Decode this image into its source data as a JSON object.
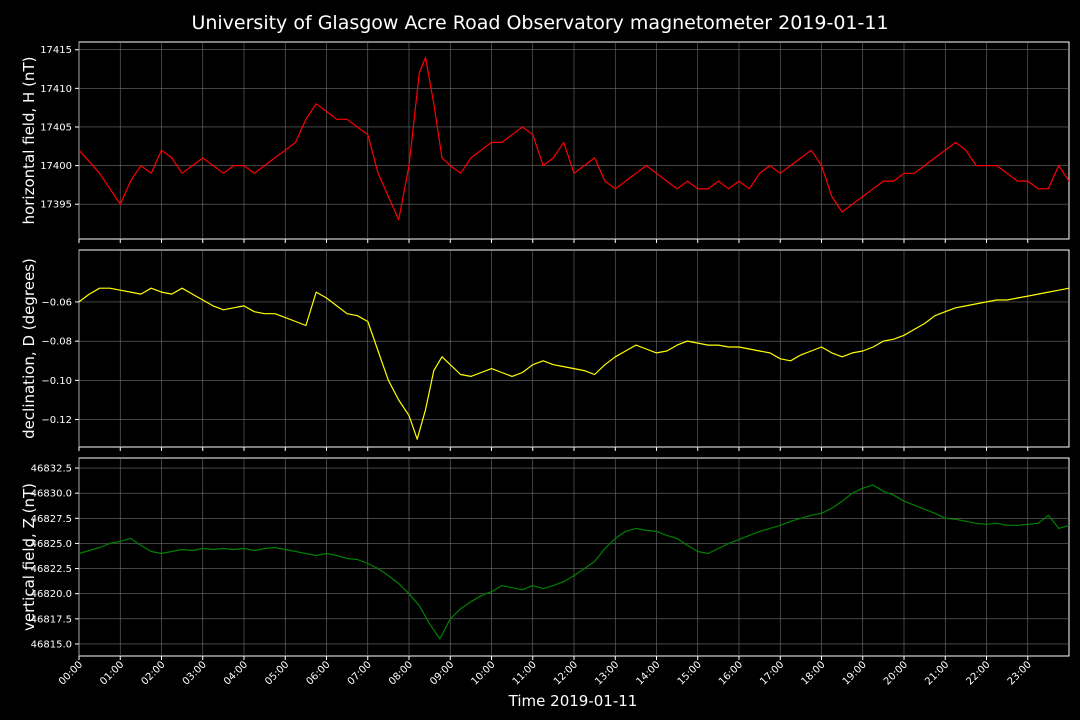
{
  "chart_data": {
    "type": "line",
    "title": "University of Glasgow Acre Road Observatory magnetometer 2019-01-11",
    "xlabel": "Time 2019-01-11",
    "x_tick_labels": [
      "00:00",
      "01:00",
      "02:00",
      "03:00",
      "04:00",
      "05:00",
      "06:00",
      "07:00",
      "08:00",
      "09:00",
      "10:00",
      "11:00",
      "12:00",
      "13:00",
      "14:00",
      "15:00",
      "16:00",
      "17:00",
      "18:00",
      "19:00",
      "20:00",
      "21:00",
      "22:00",
      "23:00"
    ],
    "x_range_hours": [
      0,
      24
    ],
    "grid": true,
    "panels": [
      {
        "ylabel": "horizontal field, H (nT)",
        "color": "#ff0000",
        "ylim": [
          17390.5,
          17416
        ],
        "y_ticks": [
          17395,
          17400,
          17405,
          17410,
          17415
        ],
        "y_tick_labels": [
          "17395",
          "17400",
          "17405",
          "17410",
          "17415"
        ],
        "series": {
          "x": [
            0,
            0.25,
            0.5,
            0.75,
            1,
            1.25,
            1.5,
            1.75,
            2,
            2.25,
            2.5,
            2.75,
            3,
            3.25,
            3.5,
            3.75,
            4,
            4.25,
            4.5,
            4.75,
            5,
            5.25,
            5.5,
            5.75,
            6,
            6.25,
            6.5,
            6.75,
            7,
            7.25,
            7.5,
            7.75,
            8,
            8.25,
            8.4,
            8.6,
            8.8,
            9,
            9.25,
            9.5,
            9.75,
            10,
            10.25,
            10.5,
            10.75,
            11,
            11.25,
            11.5,
            11.75,
            12,
            12.25,
            12.5,
            12.75,
            13,
            13.25,
            13.5,
            13.75,
            14,
            14.25,
            14.5,
            14.75,
            15,
            15.25,
            15.5,
            15.75,
            16,
            16.25,
            16.5,
            16.75,
            17,
            17.25,
            17.5,
            17.75,
            18,
            18.25,
            18.5,
            18.75,
            19,
            19.25,
            19.5,
            19.75,
            20,
            20.25,
            20.5,
            20.75,
            21,
            21.25,
            21.5,
            21.75,
            22,
            22.25,
            22.5,
            22.75,
            23,
            23.25,
            23.5,
            23.75,
            24
          ],
          "y": [
            17402,
            17400.5,
            17399,
            17397,
            17395,
            17398,
            17400,
            17399,
            17402,
            17401,
            17399,
            17400,
            17401,
            17400,
            17399,
            17400,
            17400,
            17399,
            17400,
            17401,
            17402,
            17403,
            17406,
            17408,
            17407,
            17406,
            17406,
            17405,
            17404,
            17399,
            17396,
            17393,
            17400,
            17412,
            17414,
            17408,
            17401,
            17400,
            17399,
            17401,
            17402,
            17403,
            17403,
            17404,
            17405,
            17404,
            17400,
            17401,
            17403,
            17399,
            17400,
            17401,
            17398,
            17397,
            17398,
            17399,
            17400,
            17399,
            17398,
            17397,
            17398,
            17397,
            17397,
            17398,
            17397,
            17398,
            17397,
            17399,
            17400,
            17399,
            17400,
            17401,
            17402,
            17400,
            17396,
            17394,
            17395,
            17396,
            17397,
            17398,
            17398,
            17399,
            17399,
            17400,
            17401,
            17402,
            17403,
            17402,
            17400,
            17400,
            17400,
            17399,
            17398,
            17398,
            17397,
            17397,
            17400,
            17398
          ]
        }
      },
      {
        "ylabel": "declination, D (degrees)",
        "color": "#ffff00",
        "ylim": [
          -0.134,
          -0.0335
        ],
        "y_ticks": [
          -0.06,
          -0.08,
          -0.1,
          -0.12
        ],
        "y_tick_labels": [
          "−0.06",
          "−0.08",
          "−0.10",
          "−0.12"
        ],
        "series": {
          "x": [
            0,
            0.25,
            0.5,
            0.75,
            1,
            1.25,
            1.5,
            1.75,
            2,
            2.25,
            2.5,
            2.75,
            3,
            3.25,
            3.5,
            3.75,
            4,
            4.25,
            4.5,
            4.75,
            5,
            5.25,
            5.5,
            5.75,
            6,
            6.25,
            6.5,
            6.75,
            7,
            7.25,
            7.5,
            7.75,
            8,
            8.2,
            8.4,
            8.6,
            8.8,
            9,
            9.25,
            9.5,
            9.75,
            10,
            10.25,
            10.5,
            10.75,
            11,
            11.25,
            11.5,
            11.75,
            12,
            12.25,
            12.5,
            12.75,
            13,
            13.25,
            13.5,
            13.75,
            14,
            14.25,
            14.5,
            14.75,
            15,
            15.25,
            15.5,
            15.75,
            16,
            16.25,
            16.5,
            16.75,
            17,
            17.25,
            17.5,
            17.75,
            18,
            18.25,
            18.5,
            18.75,
            19,
            19.25,
            19.5,
            19.75,
            20,
            20.25,
            20.5,
            20.75,
            21,
            21.25,
            21.5,
            21.75,
            22,
            22.25,
            22.5,
            22.75,
            23,
            23.25,
            23.5,
            23.75,
            24
          ],
          "y": [
            -0.06,
            -0.056,
            -0.053,
            -0.053,
            -0.054,
            -0.055,
            -0.056,
            -0.053,
            -0.055,
            -0.056,
            -0.053,
            -0.056,
            -0.059,
            -0.062,
            -0.064,
            -0.063,
            -0.062,
            -0.065,
            -0.066,
            -0.066,
            -0.068,
            -0.07,
            -0.072,
            -0.055,
            -0.058,
            -0.062,
            -0.066,
            -0.067,
            -0.07,
            -0.085,
            -0.1,
            -0.11,
            -0.118,
            -0.13,
            -0.115,
            -0.095,
            -0.088,
            -0.092,
            -0.097,
            -0.098,
            -0.096,
            -0.094,
            -0.096,
            -0.098,
            -0.096,
            -0.092,
            -0.09,
            -0.092,
            -0.093,
            -0.094,
            -0.095,
            -0.097,
            -0.092,
            -0.088,
            -0.085,
            -0.082,
            -0.084,
            -0.086,
            -0.085,
            -0.082,
            -0.08,
            -0.081,
            -0.082,
            -0.082,
            -0.083,
            -0.083,
            -0.084,
            -0.085,
            -0.086,
            -0.089,
            -0.09,
            -0.087,
            -0.085,
            -0.083,
            -0.086,
            -0.088,
            -0.086,
            -0.085,
            -0.083,
            -0.08,
            -0.079,
            -0.077,
            -0.074,
            -0.071,
            -0.067,
            -0.065,
            -0.063,
            -0.062,
            -0.061,
            -0.06,
            -0.059,
            -0.059,
            -0.058,
            -0.057,
            -0.056,
            -0.055,
            -0.054,
            -0.053
          ]
        }
      },
      {
        "ylabel": "vertical field, Z (nT)",
        "color": "#008000",
        "ylim": [
          46813.8,
          46833.5
        ],
        "y_ticks": [
          46815,
          46817.5,
          46820,
          46822.5,
          46825,
          46827.5,
          46830,
          46832.5
        ],
        "y_tick_labels": [
          "46815.0",
          "46817.5",
          "46820.0",
          "46822.5",
          "46825.0",
          "46827.5",
          "46830.0",
          "46832.5"
        ],
        "series": {
          "x": [
            0,
            0.25,
            0.5,
            0.75,
            1,
            1.25,
            1.5,
            1.75,
            2,
            2.25,
            2.5,
            2.75,
            3,
            3.25,
            3.5,
            3.75,
            4,
            4.25,
            4.5,
            4.75,
            5,
            5.25,
            5.5,
            5.75,
            6,
            6.25,
            6.5,
            6.75,
            7,
            7.25,
            7.5,
            7.75,
            8,
            8.25,
            8.5,
            8.75,
            9,
            9.25,
            9.5,
            9.75,
            10,
            10.25,
            10.5,
            10.75,
            11,
            11.25,
            11.5,
            11.75,
            12,
            12.25,
            12.5,
            12.75,
            13,
            13.25,
            13.5,
            13.75,
            14,
            14.25,
            14.5,
            14.75,
            15,
            15.25,
            15.5,
            15.75,
            16,
            16.25,
            16.5,
            16.75,
            17,
            17.25,
            17.5,
            17.75,
            18,
            18.25,
            18.5,
            18.75,
            19,
            19.25,
            19.5,
            19.75,
            20,
            20.25,
            20.5,
            20.75,
            21,
            21.25,
            21.5,
            21.75,
            22,
            22.25,
            22.5,
            22.75,
            23,
            23.25,
            23.5,
            23.75,
            24
          ],
          "y": [
            46824,
            46824.3,
            46824.6,
            46825,
            46825.2,
            46825.5,
            46824.8,
            46824.2,
            46824,
            46824.2,
            46824.4,
            46824.3,
            46824.5,
            46824.4,
            46824.5,
            46824.4,
            46824.5,
            46824.3,
            46824.5,
            46824.6,
            46824.4,
            46824.2,
            46824,
            46823.8,
            46824,
            46823.8,
            46823.5,
            46823.4,
            46823,
            46822.5,
            46821.8,
            46821,
            46820,
            46818.8,
            46817,
            46815.5,
            46817.5,
            46818.5,
            46819.2,
            46819.8,
            46820.2,
            46820.8,
            46820.6,
            46820.4,
            46820.8,
            46820.5,
            46820.8,
            46821.2,
            46821.8,
            46822.5,
            46823.2,
            46824.5,
            46825.5,
            46826.2,
            46826.5,
            46826.3,
            46826.2,
            46825.8,
            46825.5,
            46824.8,
            46824.2,
            46824,
            46824.5,
            46825,
            46825.4,
            46825.8,
            46826.2,
            46826.5,
            46826.8,
            46827.2,
            46827.5,
            46827.8,
            46828,
            46828.5,
            46829.2,
            46830,
            46830.5,
            46830.8,
            46830.2,
            46829.8,
            46829.2,
            46828.8,
            46828.4,
            46828,
            46827.5,
            46827.4,
            46827.2,
            46827,
            46826.9,
            46827,
            46826.8,
            46826.8,
            46826.9,
            46827,
            46827.8,
            46826.5,
            46826.8
          ]
        }
      }
    ]
  }
}
